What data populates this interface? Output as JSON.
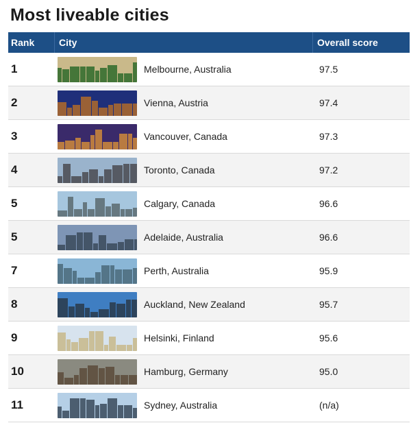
{
  "title": "Most liveable cities",
  "columns": {
    "rank": "Rank",
    "city": "City",
    "score": "Overall score"
  },
  "rows": [
    {
      "rank": "1",
      "city": "Melbourne, Australia",
      "score": "97.5",
      "thumb": "tram-photo",
      "sky": "#c9b98a",
      "fg": "#2e6a2a"
    },
    {
      "rank": "2",
      "city": "Vienna, Austria",
      "score": "97.4",
      "thumb": "palace-photo",
      "sky": "#1f2f7a",
      "fg": "#b06a2a"
    },
    {
      "rank": "3",
      "city": "Vancouver, Canada",
      "score": "97.3",
      "thumb": "night-skyline-photo",
      "sky": "#3a2a6a",
      "fg": "#d08a3a"
    },
    {
      "rank": "4",
      "city": "Toronto, Canada",
      "score": "97.2",
      "thumb": "skyline-photo",
      "sky": "#9ab3cc",
      "fg": "#4a4a50"
    },
    {
      "rank": "5",
      "city": "Calgary, Canada",
      "score": "96.6",
      "thumb": "skyline-photo",
      "sky": "#a6c6de",
      "fg": "#5a6a70"
    },
    {
      "rank": "5",
      "city": "Adelaide, Australia",
      "score": "96.6",
      "thumb": "skyline-photo",
      "sky": "#7e95b5",
      "fg": "#3a4a5a"
    },
    {
      "rank": "7",
      "city": "Perth, Australia",
      "score": "95.9",
      "thumb": "skyline-photo",
      "sky": "#8ab6d6",
      "fg": "#4a6a7a"
    },
    {
      "rank": "8",
      "city": "Auckland, New Zealand",
      "score": "95.7",
      "thumb": "skyline-photo",
      "sky": "#3f7ec2",
      "fg": "#2a3a4a"
    },
    {
      "rank": "9",
      "city": "Helsinki, Finland",
      "score": "95.6",
      "thumb": "cathedral-photo",
      "sky": "#d7e3ee",
      "fg": "#c8b88a"
    },
    {
      "rank": "10",
      "city": "Hamburg, Germany",
      "score": "95.0",
      "thumb": "aerial-city-photo",
      "sky": "#8a8a80",
      "fg": "#5a4a3a"
    },
    {
      "rank": "11",
      "city": "Sydney, Australia",
      "score": "(n/a)",
      "thumb": "bridge-photo",
      "sky": "#b5cfe6",
      "fg": "#3a4a5a"
    }
  ]
}
